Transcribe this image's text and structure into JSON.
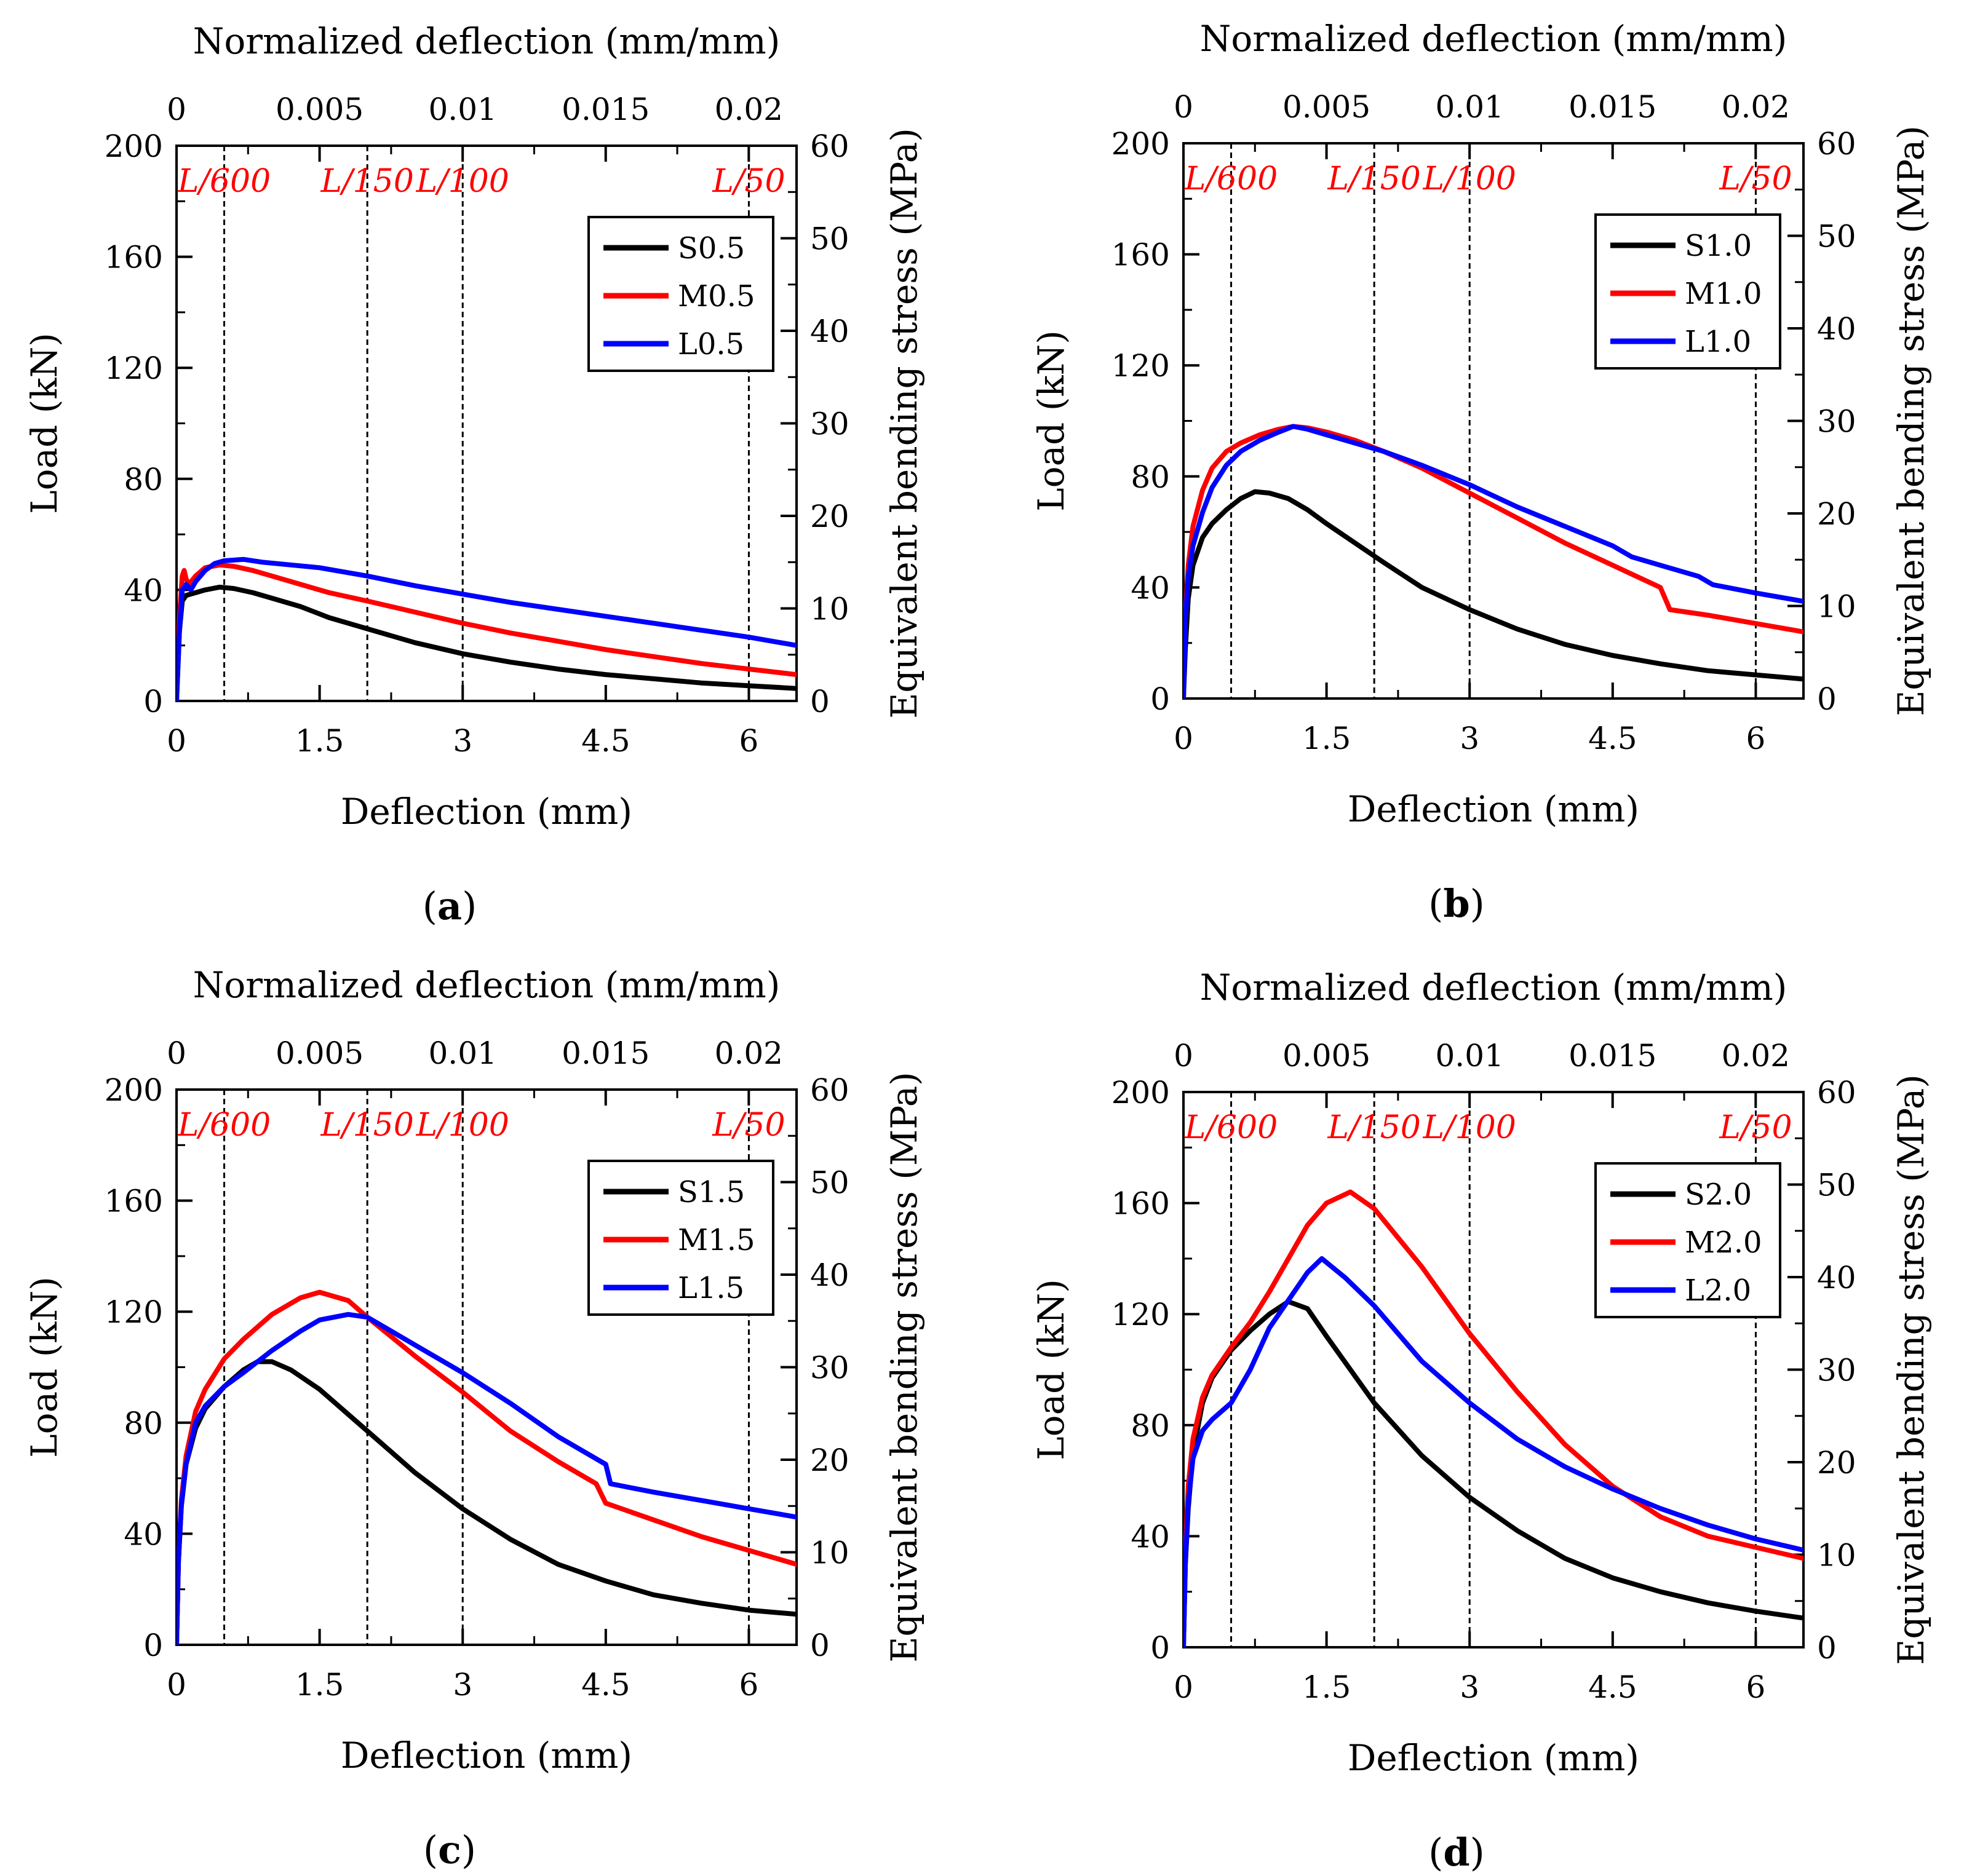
{
  "colors": {
    "S": "#000000",
    "M": "#ff0000",
    "L": "#0000ff",
    "ref_line": "#000000",
    "ref_label": "#ff0000"
  },
  "chart_data": [
    {
      "type": "line",
      "panel": "(a)",
      "xlabel": "Deflection (mm)",
      "ylabel": "Load (kN)",
      "x2label": "Normalized deflection (mm/mm)",
      "y2label": "Equivalent bending stress (MPa)",
      "xlim": [
        0,
        6.5
      ],
      "ylim": [
        0,
        200
      ],
      "x2lim": [
        0,
        0.02167
      ],
      "y2lim": [
        0,
        60
      ],
      "xticks": [
        0,
        1.5,
        3,
        4.5,
        6
      ],
      "xtick_labels": [
        "0",
        "1.5",
        "3",
        "4.5",
        "6"
      ],
      "yticks": [
        0,
        40,
        80,
        120,
        160,
        200
      ],
      "ytick_labels": [
        "0",
        "40",
        "80",
        "120",
        "160",
        "200"
      ],
      "x2ticks": [
        0,
        0.005,
        0.01,
        0.015,
        0.02
      ],
      "x2tick_labels": [
        "0",
        "0.005",
        "0.01",
        "0.015",
        "0.02"
      ],
      "y2ticks": [
        0,
        10,
        20,
        30,
        40,
        50,
        60
      ],
      "y2tick_labels": [
        "0",
        "10",
        "20",
        "30",
        "40",
        "50",
        "60"
      ],
      "ref_lines": [
        {
          "x": 0.5,
          "label": "L/600"
        },
        {
          "x": 2.0,
          "label": "L/150"
        },
        {
          "x": 3.0,
          "label": "L/100"
        },
        {
          "x": 6.0,
          "label": "L/50"
        }
      ],
      "series": [
        {
          "name": "S0.5",
          "color": "#000000",
          "x": [
            0,
            0.03,
            0.06,
            0.1,
            0.2,
            0.3,
            0.45,
            0.6,
            0.8,
            1.0,
            1.3,
            1.6,
            2.0,
            2.5,
            3.0,
            3.5,
            4.0,
            4.5,
            5.0,
            5.5,
            6.0,
            6.5
          ],
          "y": [
            0,
            25,
            36,
            38,
            39,
            40,
            41,
            40.5,
            39,
            37,
            34,
            30,
            26,
            21,
            17,
            14,
            11.5,
            9.5,
            8,
            6.5,
            5.5,
            4.5
          ]
        },
        {
          "name": "M0.5",
          "color": "#ff0000",
          "x": [
            0,
            0.03,
            0.06,
            0.08,
            0.1,
            0.13,
            0.2,
            0.3,
            0.45,
            0.6,
            0.8,
            1.0,
            1.3,
            1.6,
            2.0,
            2.5,
            3.0,
            3.5,
            4.0,
            4.5,
            5.0,
            5.5,
            6.0,
            6.5
          ],
          "y": [
            0,
            30,
            45,
            47,
            44,
            42,
            45,
            48,
            49,
            48.5,
            47,
            45,
            42,
            39,
            36,
            32,
            28,
            24.5,
            21.5,
            18.5,
            16,
            13.5,
            11.5,
            9.5
          ]
        },
        {
          "name": "L0.5",
          "color": "#0000ff",
          "x": [
            0,
            0.03,
            0.06,
            0.1,
            0.15,
            0.2,
            0.3,
            0.4,
            0.5,
            0.7,
            0.9,
            1.2,
            1.5,
            2.0,
            2.5,
            3.0,
            3.5,
            4.0,
            4.5,
            5.0,
            5.5,
            6.0,
            6.5
          ],
          "y": [
            0,
            25,
            40,
            42,
            40,
            43,
            47,
            49.5,
            50.5,
            51,
            50,
            49,
            48,
            45,
            41.5,
            38.5,
            35.5,
            33,
            30.5,
            28,
            25.5,
            23,
            20
          ]
        }
      ],
      "legend": [
        "S0.5",
        "M0.5",
        "L0.5"
      ],
      "legend_loc": "top-right"
    },
    {
      "type": "line",
      "panel": "(b)",
      "xlabel": "Deflection (mm)",
      "ylabel": "Load (kN)",
      "x2label": "Normalized deflection (mm/mm)",
      "y2label": "Equivalent bending stress (MPa)",
      "xlim": [
        0,
        6.5
      ],
      "ylim": [
        0,
        200
      ],
      "x2lim": [
        0,
        0.02167
      ],
      "y2lim": [
        0,
        60
      ],
      "xticks": [
        0,
        1.5,
        3,
        4.5,
        6
      ],
      "xtick_labels": [
        "0",
        "1.5",
        "3",
        "4.5",
        "6"
      ],
      "yticks": [
        0,
        40,
        80,
        120,
        160,
        200
      ],
      "ytick_labels": [
        "0",
        "40",
        "80",
        "120",
        "160",
        "200"
      ],
      "x2ticks": [
        0,
        0.005,
        0.01,
        0.015,
        0.02
      ],
      "x2tick_labels": [
        "0",
        "0.005",
        "0.01",
        "0.015",
        "0.02"
      ],
      "y2ticks": [
        0,
        10,
        20,
        30,
        40,
        50,
        60
      ],
      "y2tick_labels": [
        "0",
        "10",
        "20",
        "30",
        "40",
        "50",
        "60"
      ],
      "ref_lines": [
        {
          "x": 0.5,
          "label": "L/600"
        },
        {
          "x": 2.0,
          "label": "L/150"
        },
        {
          "x": 3.0,
          "label": "L/100"
        },
        {
          "x": 6.0,
          "label": "L/50"
        }
      ],
      "series": [
        {
          "name": "S1.0",
          "color": "#000000",
          "x": [
            0,
            0.02,
            0.05,
            0.1,
            0.2,
            0.3,
            0.45,
            0.6,
            0.75,
            0.9,
            1.1,
            1.3,
            1.5,
            1.8,
            2.1,
            2.5,
            3.0,
            3.5,
            4.0,
            4.5,
            5.0,
            5.5,
            6.0,
            6.5
          ],
          "y": [
            0,
            18,
            36,
            48,
            58,
            63,
            68,
            72,
            74.5,
            74,
            72,
            68,
            63,
            56,
            49,
            40,
            32,
            25,
            19.5,
            15.5,
            12.5,
            10,
            8.5,
            7
          ]
        },
        {
          "name": "M1.0",
          "color": "#ff0000",
          "x": [
            0,
            0.02,
            0.05,
            0.1,
            0.2,
            0.3,
            0.45,
            0.6,
            0.8,
            1.0,
            1.15,
            1.3,
            1.5,
            1.8,
            2.1,
            2.5,
            3.0,
            3.5,
            4.0,
            4.5,
            5.0,
            5.1,
            5.5,
            6.0,
            6.5
          ],
          "y": [
            0,
            30,
            48,
            62,
            75,
            83,
            89,
            92,
            95,
            97,
            98,
            97.5,
            96,
            93,
            89,
            83,
            74,
            65,
            56,
            48,
            40,
            32,
            30,
            27,
            24
          ]
        },
        {
          "name": "L1.0",
          "color": "#0000ff",
          "x": [
            0,
            0.02,
            0.05,
            0.1,
            0.2,
            0.3,
            0.45,
            0.6,
            0.8,
            1.0,
            1.15,
            1.3,
            1.5,
            1.8,
            2.1,
            2.5,
            3.0,
            3.5,
            4.0,
            4.5,
            4.7,
            5.0,
            5.4,
            5.55,
            6.0,
            6.5
          ],
          "y": [
            0,
            28,
            44,
            55,
            67,
            76,
            84,
            89,
            93,
            96,
            98,
            97,
            95,
            92,
            89,
            84,
            77,
            69,
            62,
            55,
            51,
            48,
            44,
            41,
            38,
            35
          ]
        }
      ],
      "legend": [
        "S1.0",
        "M1.0",
        "L1.0"
      ],
      "legend_loc": "top-right"
    },
    {
      "type": "line",
      "panel": "(c)",
      "xlabel": "Deflection (mm)",
      "ylabel": "Load (kN)",
      "x2label": "Normalized deflection (mm/mm)",
      "y2label": "Equivalent bending stress (MPa)",
      "xlim": [
        0,
        6.5
      ],
      "ylim": [
        0,
        200
      ],
      "x2lim": [
        0,
        0.02167
      ],
      "y2lim": [
        0,
        60
      ],
      "xticks": [
        0,
        1.5,
        3,
        4.5,
        6
      ],
      "xtick_labels": [
        "0",
        "1.5",
        "3",
        "4.5",
        "6"
      ],
      "yticks": [
        0,
        40,
        80,
        120,
        160,
        200
      ],
      "ytick_labels": [
        "0",
        "40",
        "80",
        "120",
        "160",
        "200"
      ],
      "x2ticks": [
        0,
        0.005,
        0.01,
        0.015,
        0.02
      ],
      "x2tick_labels": [
        "0",
        "0.005",
        "0.01",
        "0.015",
        "0.02"
      ],
      "y2ticks": [
        0,
        10,
        20,
        30,
        40,
        50,
        60
      ],
      "y2tick_labels": [
        "0",
        "10",
        "20",
        "30",
        "40",
        "50",
        "60"
      ],
      "ref_lines": [
        {
          "x": 0.5,
          "label": "L/600"
        },
        {
          "x": 2.0,
          "label": "L/150"
        },
        {
          "x": 3.0,
          "label": "L/100"
        },
        {
          "x": 6.0,
          "label": "L/50"
        }
      ],
      "series": [
        {
          "name": "S1.5",
          "color": "#000000",
          "x": [
            0,
            0.02,
            0.05,
            0.1,
            0.2,
            0.3,
            0.5,
            0.7,
            0.85,
            1.0,
            1.2,
            1.5,
            2.0,
            2.5,
            3.0,
            3.5,
            4.0,
            4.5,
            5.0,
            5.5,
            6.0,
            6.5
          ],
          "y": [
            0,
            30,
            50,
            65,
            78,
            85,
            93,
            99,
            102,
            102,
            99,
            92,
            77,
            62,
            49,
            38,
            29,
            23,
            18,
            15,
            12.5,
            11
          ]
        },
        {
          "name": "M1.5",
          "color": "#ff0000",
          "x": [
            0,
            0.02,
            0.05,
            0.1,
            0.2,
            0.3,
            0.5,
            0.7,
            1.0,
            1.3,
            1.5,
            1.8,
            2.0,
            2.5,
            3.0,
            3.5,
            4.0,
            4.4,
            4.5,
            5.0,
            5.5,
            6.0,
            6.5
          ],
          "y": [
            0,
            30,
            52,
            68,
            84,
            92,
            103,
            110,
            119,
            125,
            127,
            124,
            118,
            104,
            91,
            77,
            66,
            58,
            51,
            45,
            39,
            34,
            29
          ]
        },
        {
          "name": "L1.5",
          "color": "#0000ff",
          "x": [
            0,
            0.02,
            0.05,
            0.1,
            0.2,
            0.3,
            0.5,
            0.7,
            1.0,
            1.3,
            1.5,
            1.8,
            2.0,
            2.5,
            3.0,
            3.5,
            4.0,
            4.5,
            4.55,
            5.0,
            5.5,
            6.0,
            6.5
          ],
          "y": [
            0,
            30,
            50,
            65,
            80,
            86,
            93,
            98,
            106,
            113,
            117,
            119,
            118,
            108,
            98,
            87,
            75,
            65,
            58,
            55,
            52,
            49,
            46
          ]
        }
      ],
      "legend": [
        "S1.5",
        "M1.5",
        "L1.5"
      ],
      "legend_loc": "top-right"
    },
    {
      "type": "line",
      "panel": "(d)",
      "xlabel": "Deflection (mm)",
      "ylabel": "Load (kN)",
      "x2label": "Normalized deflection (mm/mm)",
      "y2label": "Equivalent bending stress (MPa)",
      "xlim": [
        0,
        6.5
      ],
      "ylim": [
        0,
        200
      ],
      "x2lim": [
        0,
        0.02167
      ],
      "y2lim": [
        0,
        60
      ],
      "xticks": [
        0,
        1.5,
        3,
        4.5,
        6
      ],
      "xtick_labels": [
        "0",
        "1.5",
        "3",
        "4.5",
        "6"
      ],
      "yticks": [
        0,
        40,
        80,
        120,
        160,
        200
      ],
      "ytick_labels": [
        "0",
        "40",
        "80",
        "120",
        "160",
        "200"
      ],
      "x2ticks": [
        0,
        0.005,
        0.01,
        0.015,
        0.02
      ],
      "x2tick_labels": [
        "0",
        "0.005",
        "0.01",
        "0.015",
        "0.02"
      ],
      "y2ticks": [
        0,
        10,
        20,
        30,
        40,
        50,
        60
      ],
      "y2tick_labels": [
        "0",
        "10",
        "20",
        "30",
        "40",
        "50",
        "60"
      ],
      "ref_lines": [
        {
          "x": 0.5,
          "label": "L/600"
        },
        {
          "x": 2.0,
          "label": "L/150"
        },
        {
          "x": 3.0,
          "label": "L/100"
        },
        {
          "x": 6.0,
          "label": "L/50"
        }
      ],
      "series": [
        {
          "name": "S2.0",
          "color": "#000000",
          "x": [
            0,
            0.02,
            0.05,
            0.1,
            0.2,
            0.3,
            0.5,
            0.7,
            0.9,
            1.1,
            1.3,
            1.5,
            2.0,
            2.5,
            3.0,
            3.5,
            4.0,
            4.5,
            5.0,
            5.5,
            6.0,
            6.5
          ],
          "y": [
            0,
            30,
            50,
            70,
            88,
            97,
            107,
            114,
            120,
            124.5,
            122,
            112,
            88,
            69,
            54,
            42,
            32,
            25,
            20,
            16,
            13,
            10.5
          ]
        },
        {
          "name": "M2.0",
          "color": "#ff0000",
          "x": [
            0,
            0.02,
            0.05,
            0.1,
            0.2,
            0.3,
            0.5,
            0.7,
            0.9,
            1.1,
            1.3,
            1.5,
            1.75,
            2.0,
            2.5,
            3.0,
            3.5,
            4.0,
            4.5,
            5.0,
            5.5,
            6.0,
            6.5
          ],
          "y": [
            0,
            35,
            58,
            75,
            90,
            98,
            108,
            117,
            128,
            140,
            152,
            160,
            164,
            158,
            137,
            113,
            92,
            73,
            58,
            47,
            40,
            36,
            32
          ]
        },
        {
          "name": "L2.0",
          "color": "#0000ff",
          "x": [
            0,
            0.02,
            0.05,
            0.1,
            0.2,
            0.3,
            0.5,
            0.7,
            0.9,
            1.1,
            1.3,
            1.45,
            1.7,
            2.0,
            2.5,
            3.0,
            3.5,
            4.0,
            4.5,
            5.0,
            5.5,
            6.0,
            6.5
          ],
          "y": [
            0,
            30,
            52,
            68,
            78,
            82,
            88,
            100,
            115,
            125,
            135,
            140,
            133,
            123,
            103,
            88,
            75,
            65,
            57,
            50,
            44,
            39,
            35
          ]
        }
      ],
      "legend": [
        "S2.0",
        "M2.0",
        "L2.0"
      ],
      "legend_loc": "top-right"
    }
  ]
}
